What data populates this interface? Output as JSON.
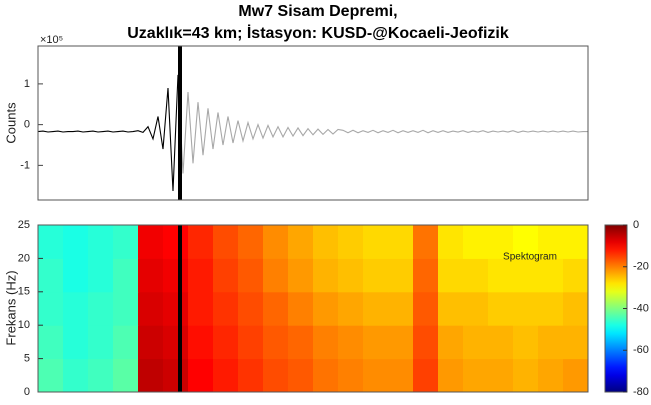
{
  "chart_data": [
    {
      "type": "line",
      "title": "Mw7 Sisam Depremi,",
      "subtitle": "Uzaklık=43 km; İstasyon: KUSD-@Kocaeli-Jeofizik",
      "ylabel": "Counts",
      "y_multiplier": "×10⁵",
      "xlim": [
        0,
        110
      ],
      "ylim": [
        -1.85,
        1.93
      ],
      "yticks": [
        -1,
        0,
        1
      ],
      "marker_x": 28.4,
      "marker_color": "#000000",
      "color_before": "#000000",
      "color_after": "#a8a8a8",
      "values": [
        -0.17,
        -0.16,
        -0.18,
        -0.17,
        -0.16,
        -0.18,
        -0.17,
        -0.17,
        -0.16,
        -0.18,
        -0.17,
        -0.16,
        -0.18,
        -0.17,
        -0.16,
        -0.18,
        -0.17,
        -0.16,
        -0.18,
        -0.17,
        -0.15,
        -0.19,
        -0.05,
        -0.35,
        0.2,
        -0.6,
        0.9,
        -1.63,
        1.22,
        -1.2,
        0.8,
        -0.95,
        0.55,
        -0.75,
        0.4,
        -0.6,
        0.3,
        -0.5,
        0.2,
        -0.45,
        0.1,
        -0.4,
        0.05,
        -0.35,
        0.0,
        -0.33,
        -0.02,
        -0.3,
        -0.05,
        -0.3,
        -0.07,
        -0.28,
        -0.08,
        -0.27,
        -0.1,
        -0.25,
        -0.11,
        -0.24,
        -0.12,
        -0.23,
        -0.12,
        -0.14,
        -0.2,
        -0.14,
        -0.2,
        -0.15,
        -0.19,
        -0.14,
        -0.2,
        -0.15,
        -0.19,
        -0.14,
        -0.2,
        -0.15,
        -0.19,
        -0.15,
        -0.19,
        -0.14,
        -0.2,
        -0.15,
        -0.19,
        -0.15,
        -0.19,
        -0.16,
        -0.18,
        -0.15,
        -0.19,
        -0.16,
        -0.18,
        -0.15,
        -0.19,
        -0.16,
        -0.18,
        -0.16,
        -0.18,
        -0.15,
        -0.19,
        -0.16,
        -0.18,
        -0.16,
        -0.18,
        -0.16,
        -0.18,
        -0.16,
        -0.18,
        -0.16,
        -0.18,
        -0.16,
        -0.18,
        -0.17,
        -0.17
      ]
    },
    {
      "type": "heatmap",
      "ylabel": "Frekans (Hz)",
      "annotation": "Spektogram",
      "xlim": [
        0,
        110
      ],
      "ylim": [
        0,
        25
      ],
      "yticks": [
        0,
        5,
        10,
        15,
        20,
        25
      ],
      "clim": [
        -80,
        0
      ],
      "cticks": [
        0,
        -20,
        -40,
        -60,
        -80
      ],
      "colormap": "jet",
      "marker_x": 28.4,
      "marker_color": "#000000",
      "z": [
        [
          -44,
          -46,
          -45,
          -43,
          -5,
          -6,
          -10,
          -12,
          -14,
          -16,
          -17,
          -19,
          -20,
          -21,
          -21,
          -15,
          -22,
          -23,
          -23,
          -24,
          -23,
          -22
        ],
        [
          -45,
          -47,
          -46,
          -44,
          -6,
          -7,
          -11,
          -13,
          -15,
          -17,
          -18,
          -20,
          -21,
          -22,
          -22,
          -16,
          -23,
          -24,
          -24,
          -25,
          -24,
          -24
        ],
        [
          -46,
          -47,
          -46,
          -45,
          -7,
          -8,
          -12,
          -14,
          -16,
          -18,
          -20,
          -22,
          -23,
          -24,
          -24,
          -17,
          -25,
          -25,
          -26,
          -26,
          -26,
          -25
        ],
        [
          -46,
          -48,
          -47,
          -45,
          -8,
          -9,
          -12,
          -15,
          -17,
          -20,
          -22,
          -24,
          -25,
          -26,
          -26,
          -18,
          -27,
          -27,
          -28,
          -28,
          -28,
          -27
        ],
        [
          -47,
          -48,
          -47,
          -46,
          -9,
          -10,
          -13,
          -16,
          -18,
          -21,
          -23,
          -25,
          -26,
          -27,
          -27,
          -19,
          -28,
          -29,
          -29,
          -30,
          -29,
          -29
        ]
      ]
    }
  ]
}
